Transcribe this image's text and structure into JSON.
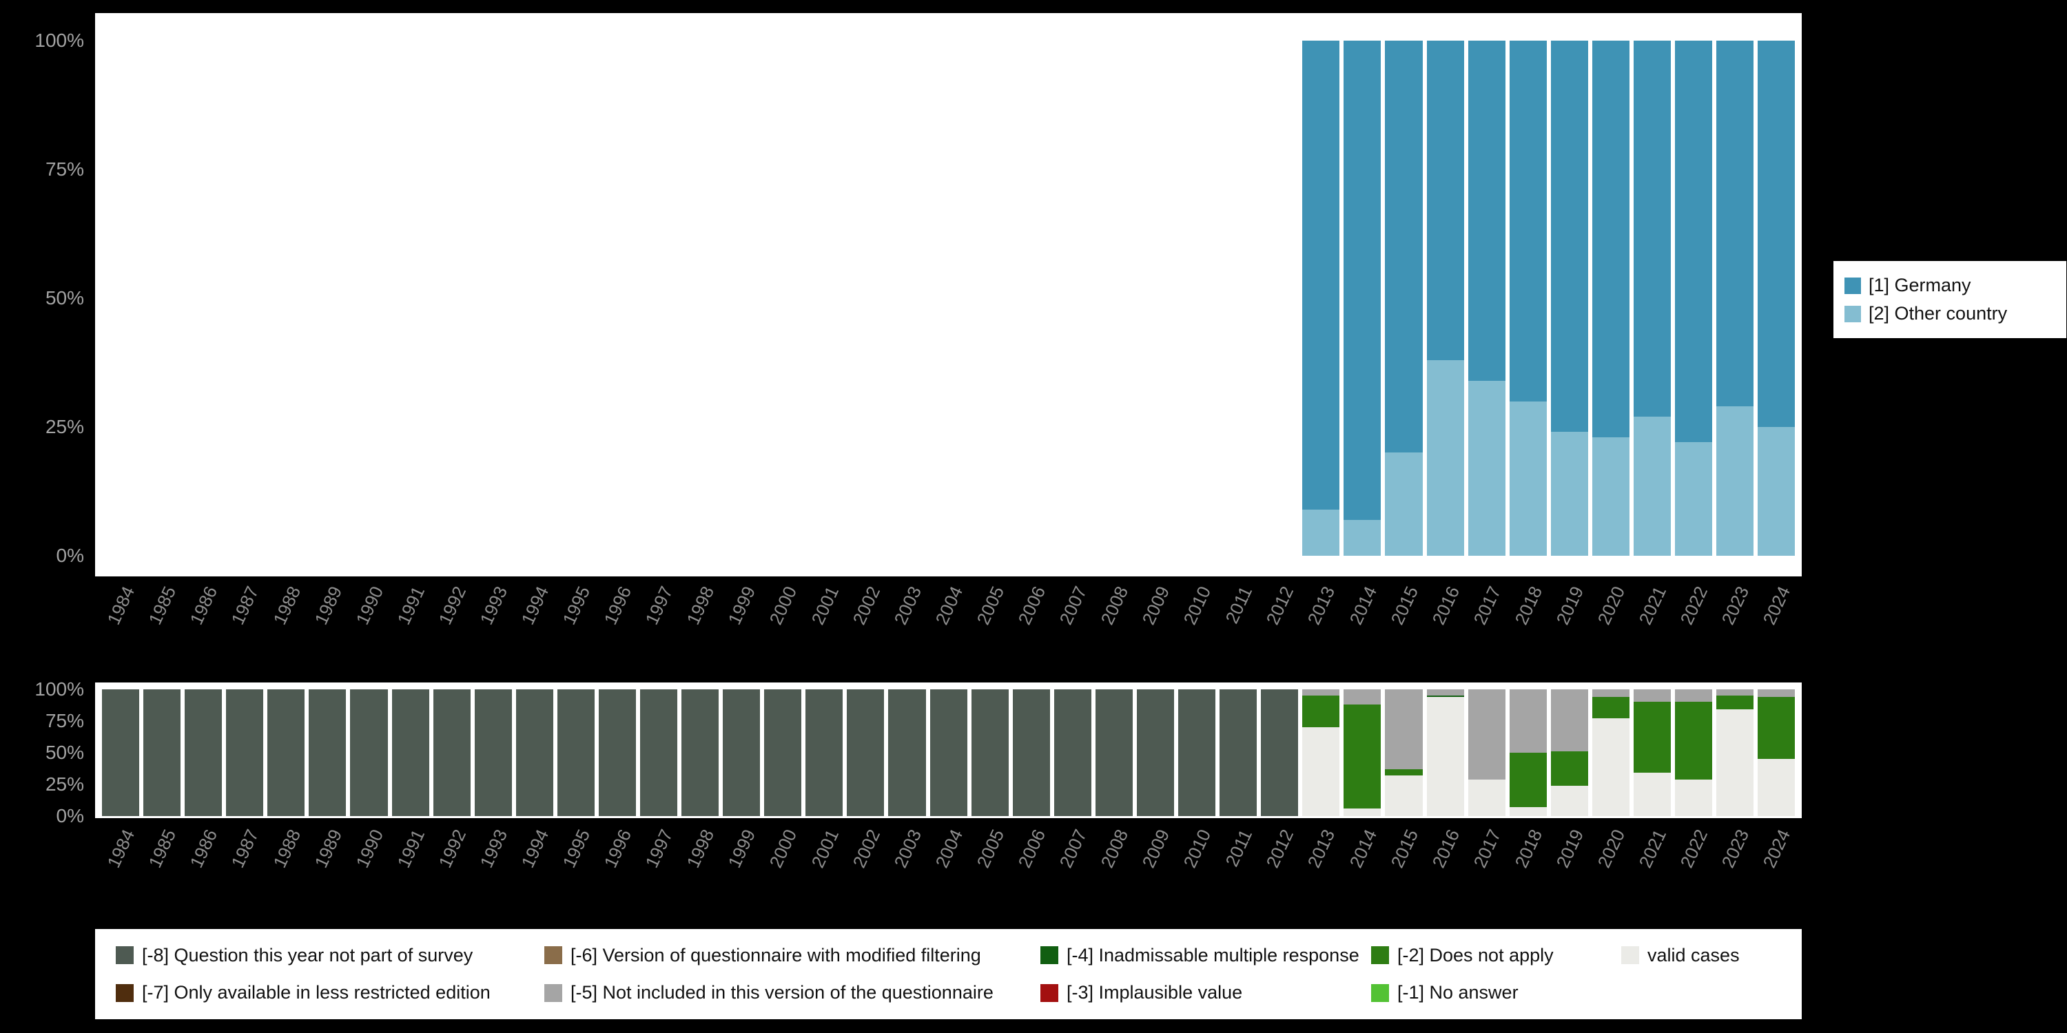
{
  "background_color": "#000000",
  "panel_color": "#ffffff",
  "axis": {
    "year_label_color": "#8d8d8d",
    "tick_label_color": "#a3a3a3",
    "yticks": [
      "100%",
      "75%",
      "50%",
      "25%",
      "0%"
    ]
  },
  "chart_data": [
    {
      "type": "bar",
      "stacked": true,
      "title": "",
      "xlabel": "",
      "ylabel": "",
      "ylim": [
        0,
        100
      ],
      "yticks": [
        "100%",
        "75%",
        "50%",
        "25%",
        "0%"
      ],
      "grid": false,
      "legend_position": "right",
      "categories": [
        "1984",
        "1985",
        "1986",
        "1987",
        "1988",
        "1989",
        "1990",
        "1991",
        "1992",
        "1993",
        "1994",
        "1995",
        "1996",
        "1997",
        "1998",
        "1999",
        "2000",
        "2001",
        "2002",
        "2003",
        "2004",
        "2005",
        "2006",
        "2007",
        "2008",
        "2009",
        "2010",
        "2011",
        "2012",
        "2013",
        "2014",
        "2015",
        "2016",
        "2017",
        "2018",
        "2019",
        "2020",
        "2021",
        "2022",
        "2023",
        "2024"
      ],
      "series": [
        {
          "name": "[1] Germany",
          "color": "#3f93b5",
          "values": [
            null,
            null,
            null,
            null,
            null,
            null,
            null,
            null,
            null,
            null,
            null,
            null,
            null,
            null,
            null,
            null,
            null,
            null,
            null,
            null,
            null,
            null,
            null,
            null,
            null,
            null,
            null,
            null,
            null,
            91,
            93,
            80,
            62,
            66,
            70,
            76,
            77,
            73,
            78,
            71,
            75
          ]
        },
        {
          "name": "[2] Other country",
          "color": "#84bdd1",
          "values": [
            null,
            null,
            null,
            null,
            null,
            null,
            null,
            null,
            null,
            null,
            null,
            null,
            null,
            null,
            null,
            null,
            null,
            null,
            null,
            null,
            null,
            null,
            null,
            null,
            null,
            null,
            null,
            null,
            null,
            9,
            7,
            20,
            38,
            34,
            30,
            24,
            23,
            27,
            22,
            29,
            25
          ]
        }
      ]
    },
    {
      "type": "bar",
      "stacked": true,
      "title": "",
      "xlabel": "",
      "ylabel": "",
      "ylim": [
        0,
        100
      ],
      "yticks": [
        "100%",
        "75%",
        "50%",
        "25%",
        "0%"
      ],
      "grid": false,
      "legend_position": "bottom",
      "categories": [
        "1984",
        "1985",
        "1986",
        "1987",
        "1988",
        "1989",
        "1990",
        "1991",
        "1992",
        "1993",
        "1994",
        "1995",
        "1996",
        "1997",
        "1998",
        "1999",
        "2000",
        "2001",
        "2002",
        "2003",
        "2004",
        "2005",
        "2006",
        "2007",
        "2008",
        "2009",
        "2010",
        "2011",
        "2012",
        "2013",
        "2014",
        "2015",
        "2016",
        "2017",
        "2018",
        "2019",
        "2020",
        "2021",
        "2022",
        "2023",
        "2024"
      ],
      "series": [
        {
          "name": "[-8] Question this year not part of survey",
          "color": "#4e5a52",
          "values": [
            100,
            100,
            100,
            100,
            100,
            100,
            100,
            100,
            100,
            100,
            100,
            100,
            100,
            100,
            100,
            100,
            100,
            100,
            100,
            100,
            100,
            100,
            100,
            100,
            100,
            100,
            100,
            100,
            100,
            0,
            0,
            0,
            0,
            0,
            0,
            0,
            0,
            0,
            0,
            0,
            0
          ]
        },
        {
          "name": "[-7] Only available in less restricted edition",
          "color": "#4f2d0e",
          "values": [
            0,
            0,
            0,
            0,
            0,
            0,
            0,
            0,
            0,
            0,
            0,
            0,
            0,
            0,
            0,
            0,
            0,
            0,
            0,
            0,
            0,
            0,
            0,
            0,
            0,
            0,
            0,
            0,
            0,
            0,
            0,
            0,
            0,
            0,
            0,
            0,
            0,
            0,
            0,
            0,
            0
          ]
        },
        {
          "name": "[-6] Version of questionnaire with modified filtering",
          "color": "#8a6d4a",
          "values": [
            0,
            0,
            0,
            0,
            0,
            0,
            0,
            0,
            0,
            0,
            0,
            0,
            0,
            0,
            0,
            0,
            0,
            0,
            0,
            0,
            0,
            0,
            0,
            0,
            0,
            0,
            0,
            0,
            0,
            0,
            0,
            0,
            0,
            0,
            0,
            0,
            0,
            0,
            0,
            0,
            0
          ]
        },
        {
          "name": "[-5] Not included in this version of the questionnaire",
          "color": "#a5a5a5",
          "values": [
            0,
            0,
            0,
            0,
            0,
            0,
            0,
            0,
            0,
            0,
            0,
            0,
            0,
            0,
            0,
            0,
            0,
            0,
            0,
            0,
            0,
            0,
            0,
            0,
            0,
            0,
            0,
            0,
            0,
            5,
            12,
            63,
            5,
            71,
            50,
            49,
            6,
            10,
            10,
            5,
            6
          ]
        },
        {
          "name": "[-4] Inadmissable multiple response",
          "color": "#115e11",
          "values": [
            0,
            0,
            0,
            0,
            0,
            0,
            0,
            0,
            0,
            0,
            0,
            0,
            0,
            0,
            0,
            0,
            0,
            0,
            0,
            0,
            0,
            0,
            0,
            0,
            0,
            0,
            0,
            0,
            0,
            0,
            0,
            0,
            1,
            0,
            0,
            0,
            0,
            0,
            0,
            0,
            0
          ]
        },
        {
          "name": "[-3] Implausible value",
          "color": "#a31010",
          "values": [
            0,
            0,
            0,
            0,
            0,
            0,
            0,
            0,
            0,
            0,
            0,
            0,
            0,
            0,
            0,
            0,
            0,
            0,
            0,
            0,
            0,
            0,
            0,
            0,
            0,
            0,
            0,
            0,
            0,
            0,
            0,
            0,
            0,
            0,
            0,
            0,
            0,
            0,
            0,
            0,
            0
          ]
        },
        {
          "name": "[-2] Does not apply",
          "color": "#2e7d13",
          "values": [
            0,
            0,
            0,
            0,
            0,
            0,
            0,
            0,
            0,
            0,
            0,
            0,
            0,
            0,
            0,
            0,
            0,
            0,
            0,
            0,
            0,
            0,
            0,
            0,
            0,
            0,
            0,
            0,
            0,
            25,
            82,
            5,
            0,
            0,
            43,
            27,
            17,
            56,
            61,
            11,
            49
          ]
        },
        {
          "name": "[-1] No answer",
          "color": "#53c234",
          "values": [
            0,
            0,
            0,
            0,
            0,
            0,
            0,
            0,
            0,
            0,
            0,
            0,
            0,
            0,
            0,
            0,
            0,
            0,
            0,
            0,
            0,
            0,
            0,
            0,
            0,
            0,
            0,
            0,
            0,
            0,
            0,
            0,
            0,
            0,
            0,
            0,
            0,
            0,
            0,
            0,
            0
          ]
        },
        {
          "name": "valid cases",
          "color": "#ebebe7",
          "values": [
            0,
            0,
            0,
            0,
            0,
            0,
            0,
            0,
            0,
            0,
            0,
            0,
            0,
            0,
            0,
            0,
            0,
            0,
            0,
            0,
            0,
            0,
            0,
            0,
            0,
            0,
            0,
            0,
            0,
            70,
            6,
            32,
            94,
            29,
            7,
            24,
            77,
            34,
            29,
            84,
            45
          ]
        }
      ]
    }
  ]
}
